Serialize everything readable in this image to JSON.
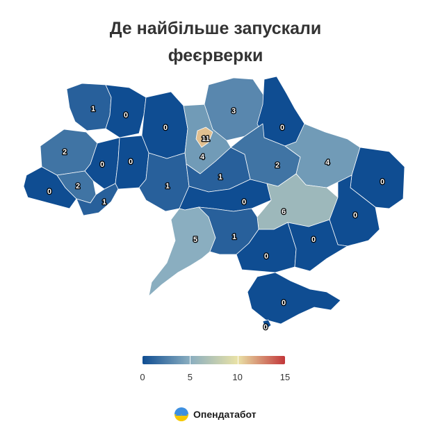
{
  "title": {
    "line1": "Де найбільше запускали",
    "line2": "феєрверки"
  },
  "chart_data": {
    "type": "choropleth",
    "regions": [
      {
        "id": "volyn",
        "value": 1
      },
      {
        "id": "rivne",
        "value": 0
      },
      {
        "id": "zhytomyr",
        "value": 0
      },
      {
        "id": "kyiv-oblast",
        "value": 4
      },
      {
        "id": "kyiv-city",
        "value": 11
      },
      {
        "id": "chernihiv",
        "value": 3
      },
      {
        "id": "sumy",
        "value": 0
      },
      {
        "id": "lviv",
        "value": 2
      },
      {
        "id": "ternopil",
        "value": 0
      },
      {
        "id": "khmelnytskyi",
        "value": 0
      },
      {
        "id": "vinnytsia",
        "value": 1
      },
      {
        "id": "cherkasy",
        "value": 1
      },
      {
        "id": "poltava",
        "value": 2
      },
      {
        "id": "kharkiv",
        "value": 4
      },
      {
        "id": "zakarpattia",
        "value": 0
      },
      {
        "id": "ivano-frankivsk",
        "value": 2
      },
      {
        "id": "chernivtsi",
        "value": 1
      },
      {
        "id": "kirovohrad",
        "value": 0
      },
      {
        "id": "dnipropetrovsk",
        "value": 6
      },
      {
        "id": "luhansk",
        "value": 0
      },
      {
        "id": "donetsk",
        "value": 0
      },
      {
        "id": "odesa",
        "value": 5
      },
      {
        "id": "mykolaiv",
        "value": 1
      },
      {
        "id": "kherson",
        "value": 0
      },
      {
        "id": "zaporizhzhia",
        "value": 0
      },
      {
        "id": "crimea",
        "value": 0
      },
      {
        "id": "sevastopol",
        "value": 0
      }
    ],
    "legend": {
      "min": 0,
      "max": 15,
      "ticks": [
        "0",
        "5",
        "10",
        "15"
      ],
      "colors": [
        "#0f4d92",
        "#8aaec0",
        "#e9e2a6",
        "#c2373a"
      ]
    }
  },
  "brand": {
    "name": "Опендатабот"
  }
}
